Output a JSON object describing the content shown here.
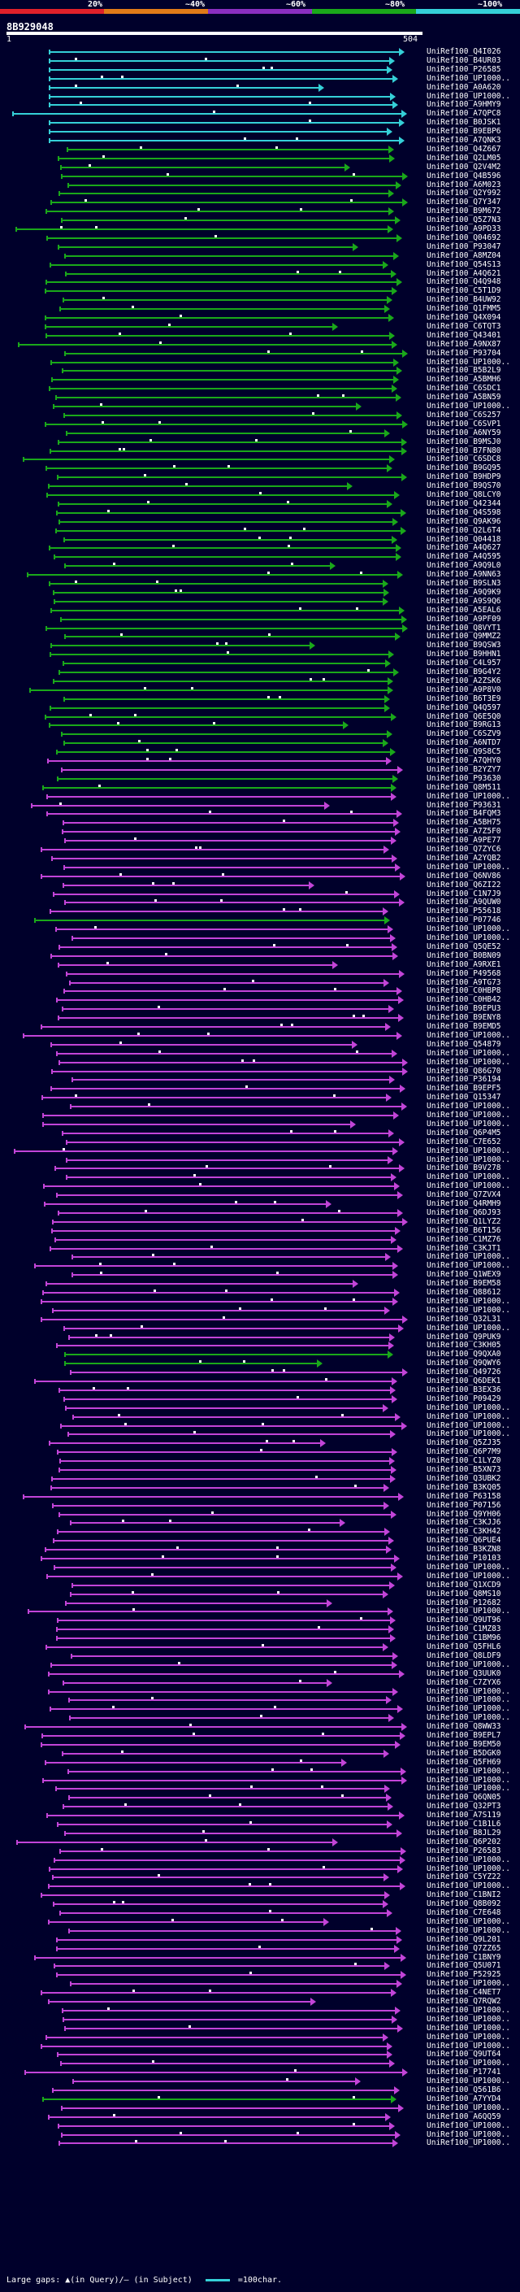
{
  "legend": {
    "percent_labels": [
      "20%",
      "~40%",
      "~60%",
      "~80%",
      "~100%"
    ],
    "colors": [
      "#e0202a",
      "#e07a18",
      "#8a2ec0",
      "#1aa81a",
      "#35d0d8"
    ]
  },
  "query": {
    "id": "8B929048",
    "start": "1",
    "end": "504"
  },
  "footer": {
    "gaps_text": "Large gaps: ▲(in Query)/— (in Subject)",
    "scale_text": "=100char."
  },
  "hit_labels": [
    "UniRef100_Q4I026",
    "UniRef100_B4UR03",
    "UniRef100_P26585",
    "UniRef100_UP1000..",
    "UniRef100_A0A620",
    "UniRef100_UP1000..",
    "UniRef100_A9HMY9",
    "UniRef100_A7QPC8",
    "UniRef100_B0JSK1",
    "UniRef100_B9EBP6",
    "UniRef100_A7QNK3",
    "UniRef100_Q4Z667",
    "UniRef100_Q2LM05",
    "UniRef100_Q2V4M2",
    "UniRef100_Q4B596",
    "UniRef100_A6M023",
    "UniRef100_Q2Y992",
    "UniRef100_Q7Y347",
    "UniRef100_B9M672",
    "UniRef100_Q5Z7N3",
    "UniRef100_A9PD33",
    "UniRef100_Q04692",
    "UniRef100_P93047",
    "UniRef100_A8MZ04",
    "UniRef100_Q54S13",
    "UniRef100_A4Q621",
    "UniRef100_Q4Q948",
    "UniRef100_C5T1D9",
    "UniRef100_B4UW92",
    "UniRef100_Q1FMM5",
    "UniRef100_Q4X094",
    "UniRef100_C6TQT3",
    "UniRef100_Q43401",
    "UniRef100_A9NX87",
    "UniRef100_P93704",
    "UniRef100_UP1000..",
    "UniRef100_B5B2L9",
    "UniRef100_A5BMH6",
    "UniRef100_C6SDC1",
    "UniRef100_A5BN59",
    "UniRef100_UP1000..",
    "UniRef100_C6S257",
    "UniRef100_C6SVP1",
    "UniRef100_A6NY59",
    "UniRef100_B9MSJ0",
    "UniRef100_B7FN80",
    "UniRef100_C6SDC8",
    "UniRef100_B9GQ95",
    "UniRef100_B9HDP9",
    "UniRef100_B9QS70",
    "UniRef100_Q8LCY0",
    "UniRef100_Q42344",
    "UniRef100_Q4S598",
    "UniRef100_Q9AK96",
    "UniRef100_Q2L6T4",
    "UniRef100_Q04418",
    "UniRef100_A4Q627",
    "UniRef100_A4Q595",
    "UniRef100_A9Q9L0",
    "UniRef100_A9NN63",
    "UniRef100_B9SLN3",
    "UniRef100_A9Q9K9",
    "UniRef100_A9S9Q6",
    "UniRef100_A5EAL6",
    "UniRef100_A9PF09",
    "UniRef100_Q8VYT1",
    "UniRef100_Q9MMZ2",
    "UniRef100_B9QSW3",
    "UniRef100_B9HHN1",
    "UniRef100_C4L957",
    "UniRef100_B9G4Y2",
    "UniRef100_A2ZSK6",
    "UniRef100_A9P8V0",
    "UniRef100_B6T3E9",
    "UniRef100_Q4Q597",
    "UniRef100_Q6E5Q0",
    "UniRef100_B9RG13",
    "UniRef100_C6SZV9",
    "UniRef100_A6NTD7",
    "UniRef100_Q9S8C5",
    "UniRef100_A7QHY0",
    "UniRef100_B2YZY7",
    "UniRef100_P93630",
    "UniRef100_Q8M511",
    "UniRef100_UP1000..",
    "UniRef100_P93631",
    "UniRef100_B4FQM3",
    "UniRef100_A5BH75",
    "UniRef100_A7Z5F0",
    "UniRef100_A9PE77",
    "UniRef100_Q7ZYC6",
    "UniRef100_A2YQB2",
    "UniRef100_UP1000..",
    "UniRef100_Q6NV86",
    "UniRef100_Q6ZI22",
    "UniRef100_C1N7J9",
    "UniRef100_A9QUW0",
    "UniRef100_P55618",
    "UniRef100_P07746",
    "UniRef100_UP1000..",
    "UniRef100_UP1000..",
    "UniRef100_Q5QE52",
    "UniRef100_B0BN09",
    "UniRef100_A9RXE1",
    "UniRef100_P49568",
    "UniRef100_A9TG73",
    "UniRef100_C0HBP8",
    "UniRef100_C0HB42",
    "UniRef100_B9EPU3",
    "UniRef100_B9ENY8",
    "UniRef100_B9EMD5",
    "UniRef100_UP1000..",
    "UniRef100_Q54879",
    "UniRef100_UP1000..",
    "UniRef100_UP1000..",
    "UniRef100_Q86G70",
    "UniRef100_P36194",
    "UniRef100_B9EPF5",
    "UniRef100_Q15347",
    "UniRef100_UP1000..",
    "UniRef100_UP1000..",
    "UniRef100_UP1000..",
    "UniRef100_Q6P4M5",
    "UniRef100_C7E652",
    "UniRef100_UP1000..",
    "UniRef100_UP1000..",
    "UniRef100_B9V278",
    "UniRef100_UP1000..",
    "UniRef100_UP1000..",
    "UniRef100_Q7ZVX4",
    "UniRef100_Q4RMH9",
    "UniRef100_Q6DJ93",
    "UniRef100_Q1LYZ2",
    "UniRef100_B6T156",
    "UniRef100_C1MZ76",
    "UniRef100_C3KJT1",
    "UniRef100_UP1000..",
    "UniRef100_UP1000..",
    "UniRef100_Q1WEX9",
    "UniRef100_B9EM58",
    "UniRef100_Q88612",
    "UniRef100_UP1000..",
    "UniRef100_UP1000..",
    "UniRef100_Q32L31",
    "UniRef100_UP1000..",
    "UniRef100_Q9PUK9",
    "UniRef100_C3KH05",
    "UniRef100_Q9QXA0",
    "UniRef100_Q9QWY6",
    "UniRef100_Q49726",
    "UniRef100_Q6DEK1",
    "UniRef100_B3EX36",
    "UniRef100_P09429",
    "UniRef100_UP1000..",
    "UniRef100_UP1000..",
    "UniRef100_UP1000..",
    "UniRef100_UP1000..",
    "UniRef100_Q5ZJ35",
    "UniRef100_Q6P7M9",
    "UniRef100_C1LYZ0",
    "UniRef100_B5XN73",
    "UniRef100_Q3UBK2",
    "UniRef100_B3KQ05",
    "UniRef100_P63158",
    "UniRef100_P07156",
    "UniRef100_Q9YH06",
    "UniRef100_C3KJJ6",
    "UniRef100_C3KH42",
    "UniRef100_Q6PUE4",
    "UniRef100_B3KZN8",
    "UniRef100_P10103",
    "UniRef100_UP1000..",
    "UniRef100_UP1000..",
    "UniRef100_Q1XCD9",
    "UniRef100_Q8MS10",
    "UniRef100_P12682",
    "UniRef100_UP1000..",
    "UniRef100_Q9UT96",
    "UniRef100_C1MZ83",
    "UniRef100_C1BM96",
    "UniRef100_Q5FHL6",
    "UniRef100_Q8LDF9",
    "UniRef100_UP1000..",
    "UniRef100_Q3UUK0",
    "UniRef100_C7ZYX6",
    "UniRef100_UP1000..",
    "UniRef100_UP1000..",
    "UniRef100_UP1000..",
    "UniRef100_UP1000..",
    "UniRef100_Q8WW33",
    "UniRef100_B9EPL7",
    "UniRef100_B9EM50",
    "UniRef100_B5DGK0",
    "UniRef100_Q5FH69",
    "UniRef100_UP1000..",
    "UniRef100_UP1000..",
    "UniRef100_UP1000..",
    "UniRef100_Q6QN05",
    "UniRef100_Q32PT3",
    "UniRef100_A7S119",
    "UniRef100_C1B1L6",
    "UniRef100_B8JL29",
    "UniRef100_Q6P202",
    "UniRef100_P26583",
    "UniRef100_UP1000..",
    "UniRef100_UP1000..",
    "UniRef100_C5YZ22",
    "UniRef100_UP1000..",
    "UniRef100_C1BNI2",
    "UniRef100_Q8B092",
    "UniRef100_C7E648",
    "UniRef100_UP1000..",
    "UniRef100_UP1000..",
    "UniRef100_Q9L201",
    "UniRef100_Q7ZZ65",
    "UniRef100_C1BNY9",
    "UniRef100_Q5U071",
    "UniRef100_P52925",
    "UniRef100_UP1000..",
    "UniRef100_C4NET7",
    "UniRef100_Q7RQW2",
    "UniRef100_UP1000..",
    "UniRef100_UP1000..",
    "UniRef100_UP1000..",
    "UniRef100_UP1000..",
    "UniRef100_UP1000..",
    "UniRef100_Q9UT64",
    "UniRef100_UP1000..",
    "UniRef100_P17741",
    "UniRef100_UP1000..",
    "UniRef100_Q561B6",
    "UniRef100_A7YYD4",
    "UniRef100_UP1000..",
    "UniRef100_A6QQ59",
    "UniRef100_UP1000..",
    "UniRef100_UP1000..",
    "UniRef100_UP1000.."
  ]
}
